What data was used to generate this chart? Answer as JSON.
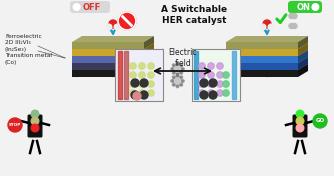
{
  "title": "A Switchable\nHER catalyst",
  "off_label": "OFF",
  "on_label": "ON",
  "electric_field": "Electric\nfield",
  "left_text": "Ferroelectric\n2D III₂VI₃\n(In₂Se₃)\nTransition metal\n(Co)",
  "bg_color": "#f2f2f2",
  "off_pill_color": "#d8d8d8",
  "on_pill_color": "#33cc33",
  "slab_left_layers": [
    "#1a1a1a",
    "#3a3a5a",
    "#5566aa",
    "#c9a52a",
    "#9a9a55"
  ],
  "slab_right_layers": [
    "#1a1a1a",
    "#2255aa",
    "#3377cc",
    "#c9a52a",
    "#9a9a55"
  ],
  "panel_left_bg": "#eeeef8",
  "panel_right_bg": "#eef8ee",
  "bar_left_colors": [
    "#cc3333",
    "#bb5555"
  ],
  "bar_right_colors": [
    "#3399cc",
    "#55aadd"
  ],
  "traffic_body": "#111111",
  "stop_color": "#dd2222",
  "go_color": "#22bb22"
}
